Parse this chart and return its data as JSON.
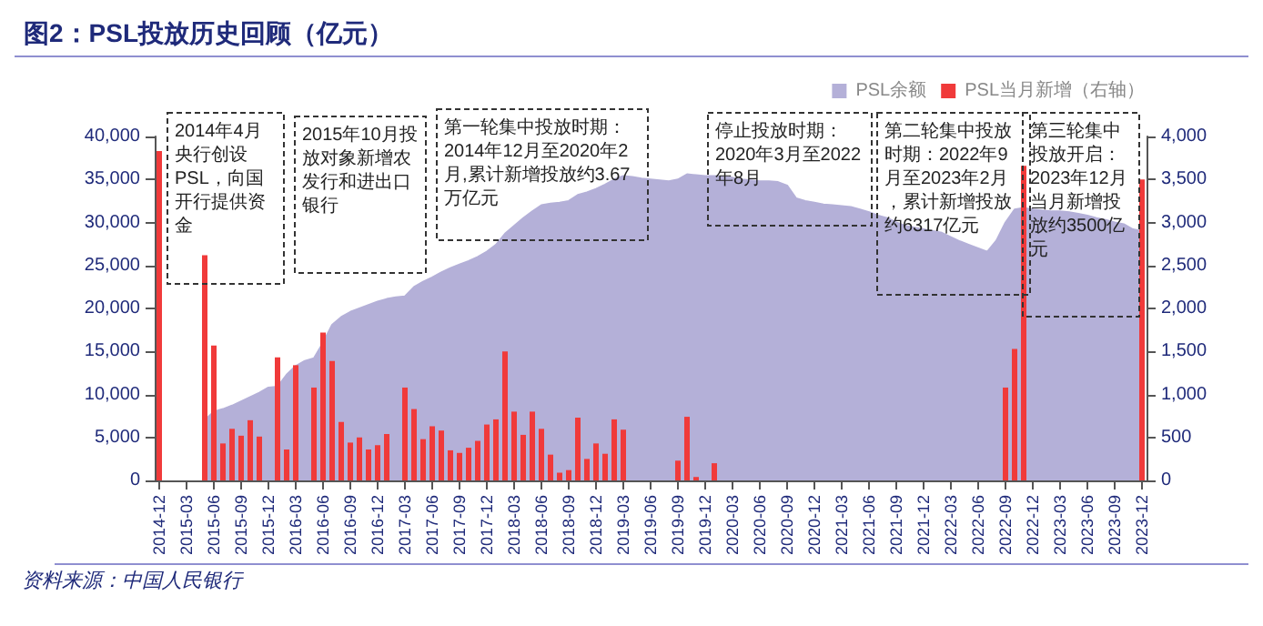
{
  "chart_data": {
    "type": "area",
    "title": "图2：PSL投放历史回顾（亿元）",
    "annotations": [
      "2014年4月央行创设PSL，向国开行提供资金",
      "2015年10月投放对象新增农发行和进出口银行",
      "第一轮集中投放时期：2014年12月至2020年2月,累计新增投放约3.67万亿元",
      "停止投放时期：2020年3月至2022年8月",
      "第二轮集中投放时期：2022年9月至2023年2月，累计新增投放约6317亿元",
      "第三轮集中投放开启：2023年12月当月新增投放约3500亿元",
      "资料来源：中国人民银行"
    ],
    "categories": [
      "2014-12",
      null,
      null,
      "2015-03",
      null,
      null,
      "2015-06",
      null,
      null,
      "2015-09",
      null,
      null,
      "2015-12",
      null,
      null,
      "2016-03",
      null,
      null,
      "2016-06",
      null,
      null,
      "2016-09",
      null,
      null,
      "2016-12",
      null,
      null,
      "2017-03",
      null,
      null,
      "2017-06",
      null,
      null,
      "2017-09",
      null,
      null,
      "2017-12",
      null,
      null,
      "2018-03",
      null,
      null,
      "2018-06",
      null,
      null,
      "2018-09",
      null,
      null,
      "2018-12",
      null,
      null,
      "2019-03",
      null,
      null,
      "2019-06",
      null,
      null,
      "2019-09",
      null,
      null,
      "2019-12",
      null,
      null,
      "2020-03",
      null,
      null,
      "2020-06",
      null,
      null,
      "2020-09",
      null,
      null,
      "2020-12",
      null,
      null,
      "2021-03",
      null,
      null,
      "2021-06",
      null,
      null,
      "2021-09",
      null,
      null,
      "2021-12",
      null,
      null,
      "2022-03",
      null,
      null,
      "2022-06",
      null,
      null,
      "2022-09",
      null,
      null,
      "2022-12",
      null,
      null,
      "2023-03",
      null,
      null,
      "2023-06",
      null,
      null,
      "2023-09",
      null,
      null,
      "2023-12"
    ],
    "series": [
      {
        "name": "PSL余额",
        "color": "#b4b0d8",
        "values": [
          null,
          null,
          null,
          null,
          null,
          7000,
          8000,
          8300,
          8700,
          9200,
          9700,
          10200,
          10800,
          10900,
          12300,
          13300,
          13900,
          14200,
          16000,
          18100,
          19000,
          19600,
          20000,
          20400,
          20800,
          21100,
          21300,
          21400,
          22500,
          23100,
          23600,
          24200,
          24700,
          25100,
          25500,
          26000,
          26600,
          27400,
          28700,
          29600,
          30500,
          31300,
          32000,
          32200,
          32300,
          32500,
          33200,
          33500,
          33900,
          34400,
          35000,
          35400,
          35300,
          35100,
          35000,
          34900,
          34800,
          35000,
          35600,
          35500,
          35400,
          35400,
          35300,
          35200,
          35000,
          34900,
          34800,
          34800,
          34700,
          34300,
          32800,
          32500,
          32300,
          32100,
          32000,
          31900,
          31800,
          31500,
          31200,
          30800,
          30500,
          30000,
          29600,
          29400,
          29200,
          29000,
          28800,
          28300,
          27800,
          27400,
          27000,
          26600,
          27900,
          30000,
          31500,
          31700,
          31500,
          31400,
          31300,
          31300,
          31200,
          31000,
          30800,
          30500,
          30300,
          30000,
          29800,
          29200,
          29000
        ]
      },
      {
        "name": "PSL当月新增（右轴）",
        "type": "bar",
        "axis": "y2",
        "color": "#f03a3a",
        "values": [
          3830,
          null,
          null,
          null,
          null,
          2620,
          1570,
          430,
          600,
          520,
          700,
          510,
          null,
          1430,
          360,
          1340,
          null,
          1080,
          1720,
          1390,
          680,
          440,
          500,
          360,
          410,
          540,
          null,
          1080,
          830,
          480,
          630,
          580,
          350,
          320,
          380,
          460,
          650,
          710,
          1500,
          800,
          530,
          800,
          600,
          300,
          90,
          120,
          730,
          250,
          430,
          310,
          710,
          590,
          null,
          null,
          null,
          null,
          null,
          230,
          740,
          40,
          null,
          200,
          null,
          null,
          null,
          null,
          null,
          null,
          null,
          null,
          null,
          null,
          null,
          null,
          null,
          null,
          null,
          null,
          null,
          null,
          null,
          null,
          null,
          null,
          null,
          null,
          null,
          null,
          null,
          null,
          null,
          null,
          null,
          1080,
          1530,
          3660,
          null,
          null,
          null,
          null,
          null,
          null,
          null,
          null,
          null,
          null,
          null,
          null,
          3500
        ]
      }
    ],
    "ylim": [
      0,
      40000
    ],
    "yticks": [
      {
        "value": 0,
        "label": "0"
      },
      {
        "value": 5000,
        "label": "5,000"
      },
      {
        "value": 10000,
        "label": "10,000"
      },
      {
        "value": 15000,
        "label": "15,000"
      },
      {
        "value": 20000,
        "label": "20,000"
      },
      {
        "value": 25000,
        "label": "25,000"
      },
      {
        "value": 30000,
        "label": "30,000"
      },
      {
        "value": 35000,
        "label": "35,000"
      },
      {
        "value": 40000,
        "label": "40,000"
      }
    ],
    "y2lim": [
      0,
      4000
    ],
    "y2ticks": [
      0,
      500,
      {
        "value": 1000,
        "label": "1,000"
      },
      {
        "value": 1500,
        "label": "1,500"
      },
      {
        "value": 2000,
        "label": "2,000"
      },
      {
        "value": 2500,
        "label": "2,500"
      },
      {
        "value": 3000,
        "label": "3,000"
      },
      {
        "value": 3500,
        "label": "3,500"
      },
      {
        "value": 4000,
        "label": "4,000"
      }
    ],
    "legend": "top right",
    "grid": false
  }
}
